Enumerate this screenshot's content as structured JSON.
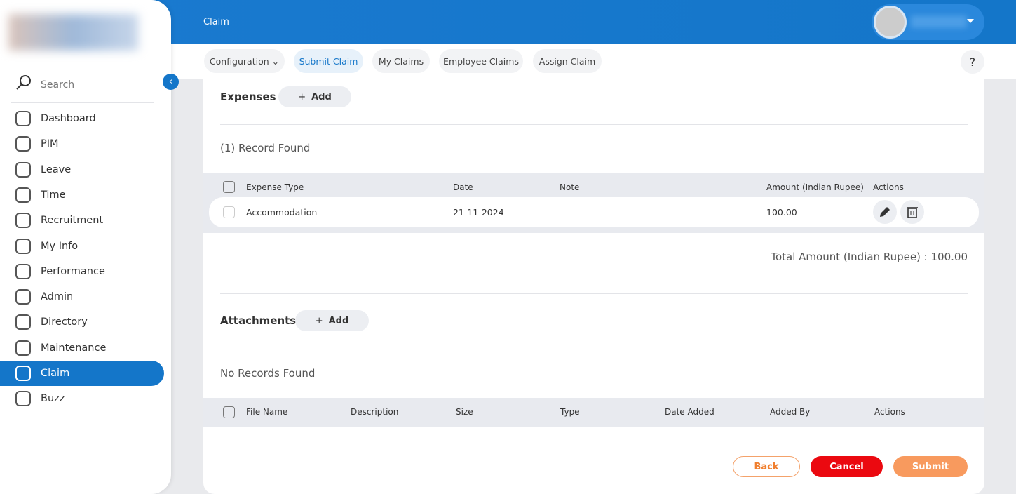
{
  "header": {
    "title": "Claim"
  },
  "sidebar": {
    "search": "Search",
    "menu": [
      "Dashboard",
      "PIM",
      "Leave",
      "Time",
      "Recruitment",
      "My Info",
      "Performance",
      "Admin",
      "Directory",
      "Maintenance",
      "Claim",
      "Buzz"
    ],
    "active": "Claim"
  },
  "tabs": [
    "Configuration",
    "Submit Claim",
    "My Claims",
    "Employee Claims",
    "Assign Claim"
  ],
  "active_tab": "Submit Claim",
  "help": "?",
  "expenses": {
    "title": "Expenses",
    "add": "Add",
    "count": "(1) Record Found",
    "columns": [
      "Expense Type",
      "Date",
      "Note",
      "Amount (Indian Rupee)",
      "Actions"
    ],
    "rows": [
      {
        "type": "Accommodation",
        "date": "21-11-2024",
        "amount": "100.00"
      }
    ],
    "total": "Total Amount (Indian Rupee) : 100.00"
  },
  "attachments": {
    "title": "Attachments",
    "add": "Add",
    "count": "No Records Found",
    "columns": [
      "File Name",
      "Description",
      "Size",
      "Type",
      "Date Added",
      "Added By",
      "Actions"
    ]
  },
  "buttons": {
    "back": "Back",
    "cancel": "Cancel",
    "submit": "Submit"
  }
}
